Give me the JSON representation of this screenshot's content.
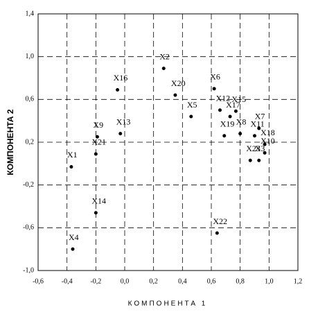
{
  "chart_data": {
    "type": "scatter",
    "x_label": "КОМПОНЕНТА 1",
    "y_label": "КОМПОНЕНТА 2",
    "labels": [
      "X1",
      "X2",
      "X3",
      "X4",
      "X5",
      "X6",
      "X7",
      "X8",
      "X9",
      "X10",
      "X11",
      "X12",
      "X13",
      "X14",
      "X15",
      "X16",
      "X17",
      "X18",
      "X19",
      "X20",
      "X21",
      "X22",
      "X23"
    ],
    "x": [
      -0.37,
      0.27,
      0.93,
      -0.36,
      0.46,
      0.62,
      0.93,
      0.8,
      -0.19,
      0.97,
      0.9,
      0.66,
      -0.03,
      -0.2,
      0.77,
      -0.05,
      0.73,
      0.97,
      0.69,
      0.35,
      -0.2,
      0.64,
      0.87
    ],
    "y": [
      -0.03,
      0.89,
      0.03,
      -0.8,
      0.44,
      0.7,
      0.33,
      0.28,
      0.25,
      0.1,
      0.26,
      0.5,
      0.28,
      -0.46,
      0.49,
      0.69,
      0.44,
      0.18,
      0.26,
      0.64,
      0.09,
      -0.65,
      0.03
    ],
    "color": "#000000",
    "xlim": [
      -0.6,
      1.2
    ],
    "ylim": [
      -1.0,
      1.4
    ],
    "xticks": [
      {
        "value": -0.6,
        "label": "-0,6"
      },
      {
        "value": -0.4,
        "label": "-0,4"
      },
      {
        "value": -0.2,
        "label": "-0,2"
      },
      {
        "value": 0,
        "label": "0,0"
      },
      {
        "value": 0.2,
        "label": "0,2"
      },
      {
        "value": 0.4,
        "label": "0,4"
      },
      {
        "value": 0.6,
        "label": "0,6"
      },
      {
        "value": 0.8,
        "label": "0,8"
      },
      {
        "value": 1.0,
        "label": "1,0"
      },
      {
        "value": 1.2,
        "label": "1,2"
      }
    ],
    "yticks": [
      {
        "value": -1.0,
        "label": "-1,0"
      },
      {
        "value": -0.6,
        "label": "-0,6"
      },
      {
        "value": -0.2,
        "label": "-0,2"
      },
      {
        "value": 0.2,
        "label": "0,2"
      },
      {
        "value": 0.6,
        "label": "0,6"
      },
      {
        "value": 1.0,
        "label": "1,0"
      },
      {
        "value": 1.4,
        "label": "1,4"
      }
    ],
    "grid": true
  }
}
